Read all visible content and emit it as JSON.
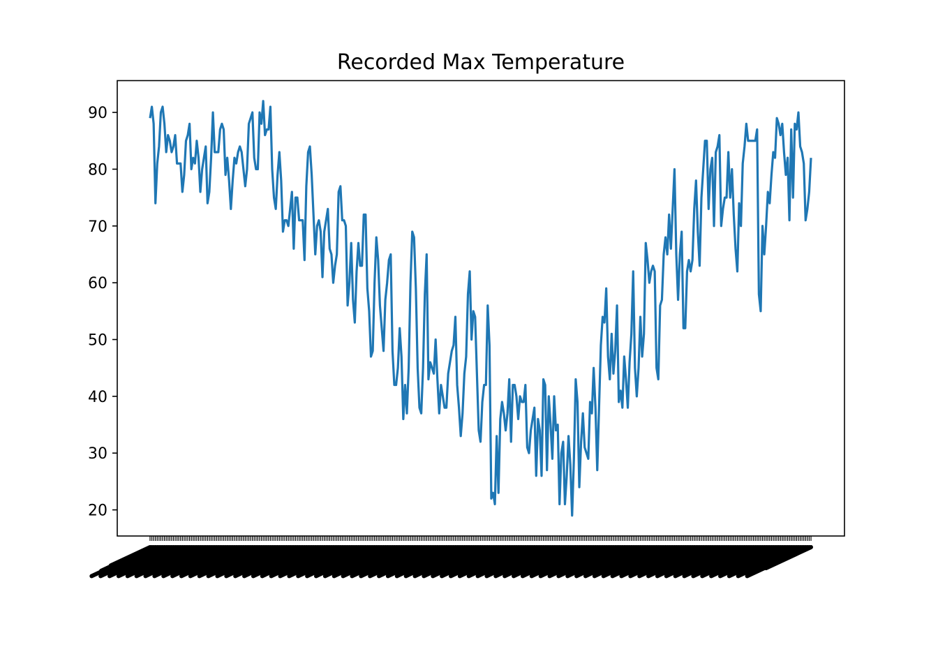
{
  "chart_data": {
    "type": "line",
    "title": "Recorded Max Temperature",
    "xlabel": "",
    "ylabel": "",
    "ylim": [
      15.4,
      95.6
    ],
    "yticks": [
      20,
      30,
      40,
      50,
      60,
      70,
      80,
      90
    ],
    "grid": false,
    "legend": "none",
    "x_tick_count": 365,
    "x_tick_label_visible": "illegible overlapping rotated date labels",
    "colors": {
      "line": "#1f77b4",
      "axes": "#000000"
    },
    "series": [
      {
        "values": [
          89,
          91,
          88,
          74,
          81,
          84,
          90,
          91,
          88,
          83,
          86,
          85,
          83,
          84,
          86,
          81,
          81,
          81,
          76,
          79,
          85,
          86,
          88,
          80,
          82,
          81,
          85,
          82,
          76,
          80,
          82,
          84,
          74,
          76,
          82,
          90,
          83,
          83,
          83,
          87,
          88,
          87,
          79,
          82,
          78,
          73,
          78,
          82,
          81,
          83,
          84,
          83,
          80,
          77,
          80,
          88,
          89,
          90,
          82,
          80,
          80,
          90,
          88,
          92,
          86,
          87,
          87,
          91,
          80,
          75,
          73,
          79,
          83,
          78,
          69,
          71,
          71,
          70,
          73,
          76,
          66,
          75,
          75,
          71,
          71,
          71,
          64,
          77,
          83,
          84,
          79,
          72,
          65,
          70,
          71,
          69,
          61,
          69,
          71,
          73,
          66,
          65,
          60,
          63,
          65,
          76,
          77,
          71,
          71,
          70,
          56,
          60,
          67,
          57,
          53,
          62,
          67,
          63,
          63,
          72,
          72,
          59,
          55,
          47,
          48,
          60,
          68,
          64,
          56,
          52,
          48,
          57,
          60,
          64,
          65,
          48,
          42,
          42,
          45,
          52,
          47,
          36,
          42,
          37,
          45,
          60,
          69,
          68,
          59,
          45,
          38,
          37,
          45,
          58,
          65,
          43,
          46,
          45,
          44,
          50,
          43,
          37,
          42,
          40,
          38,
          38,
          44,
          46,
          48,
          49,
          54,
          42,
          38,
          33,
          37,
          44,
          47,
          58,
          62,
          50,
          55,
          54,
          44,
          34,
          32,
          39,
          42,
          42,
          56,
          49,
          22,
          23,
          21,
          33,
          23,
          36,
          39,
          37,
          34,
          37,
          43,
          32,
          42,
          42,
          40,
          36,
          40,
          39,
          39,
          42,
          31,
          30,
          34,
          36,
          38,
          26,
          36,
          34,
          26,
          43,
          42,
          27,
          40,
          35,
          29,
          40,
          34,
          35,
          21,
          30,
          32,
          21,
          26,
          33,
          28,
          19,
          29,
          43,
          39,
          24,
          32,
          37,
          31,
          30,
          29,
          39,
          37,
          45,
          38,
          27,
          38,
          49,
          54,
          53,
          59,
          47,
          43,
          51,
          44,
          48,
          56,
          39,
          41,
          38,
          47,
          43,
          38,
          46,
          51,
          62,
          45,
          40,
          45,
          54,
          47,
          51,
          67,
          64,
          60,
          62,
          63,
          62,
          45,
          43,
          56,
          57,
          65,
          68,
          65,
          72,
          66,
          73,
          80,
          65,
          57,
          65,
          69,
          52,
          52,
          62,
          64,
          62,
          64,
          73,
          78,
          69,
          63,
          75,
          80,
          85,
          85,
          73,
          80,
          82,
          70,
          83,
          84,
          86,
          70,
          73,
          75,
          75,
          83,
          75,
          80,
          72,
          66,
          62,
          74,
          70,
          81,
          84,
          88,
          85,
          85,
          85,
          85,
          85,
          87,
          58,
          55,
          70,
          65,
          70,
          76,
          74,
          79,
          83,
          82,
          89,
          88,
          86,
          88,
          83,
          79,
          82,
          71,
          87,
          75,
          88,
          87,
          90,
          84,
          83,
          81,
          71,
          73,
          76,
          82
        ]
      }
    ]
  }
}
